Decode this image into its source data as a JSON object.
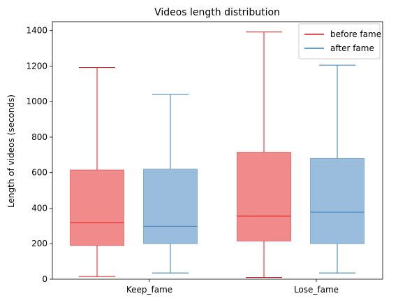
{
  "chart_data": {
    "type": "box",
    "title": "Videos length distribution",
    "xlabel": "",
    "ylabel": "Length of videos (seconds)",
    "ylim": [
      0,
      1450
    ],
    "yticks": [
      0,
      200,
      400,
      600,
      800,
      1000,
      1200,
      1400
    ],
    "categories": [
      "Keep_fame",
      "Lose_fame"
    ],
    "legend_position": "top-right",
    "grid": false,
    "series": [
      {
        "name": "before fame",
        "color": "#e41a1c",
        "fill": "#f08a8b",
        "boxes": [
          {
            "whisker_low": 15,
            "q1": 190,
            "median": 318,
            "q3": 615,
            "whisker_high": 1192
          },
          {
            "whisker_low": 10,
            "q1": 215,
            "median": 355,
            "q3": 715,
            "whisker_high": 1392
          }
        ]
      },
      {
        "name": "after fame",
        "color": "#377eb8",
        "fill": "#9bbddd",
        "boxes": [
          {
            "whisker_low": 35,
            "q1": 200,
            "median": 298,
            "q3": 620,
            "whisker_high": 1040
          },
          {
            "whisker_low": 35,
            "q1": 200,
            "median": 378,
            "q3": 680,
            "whisker_high": 1205
          }
        ]
      }
    ]
  }
}
